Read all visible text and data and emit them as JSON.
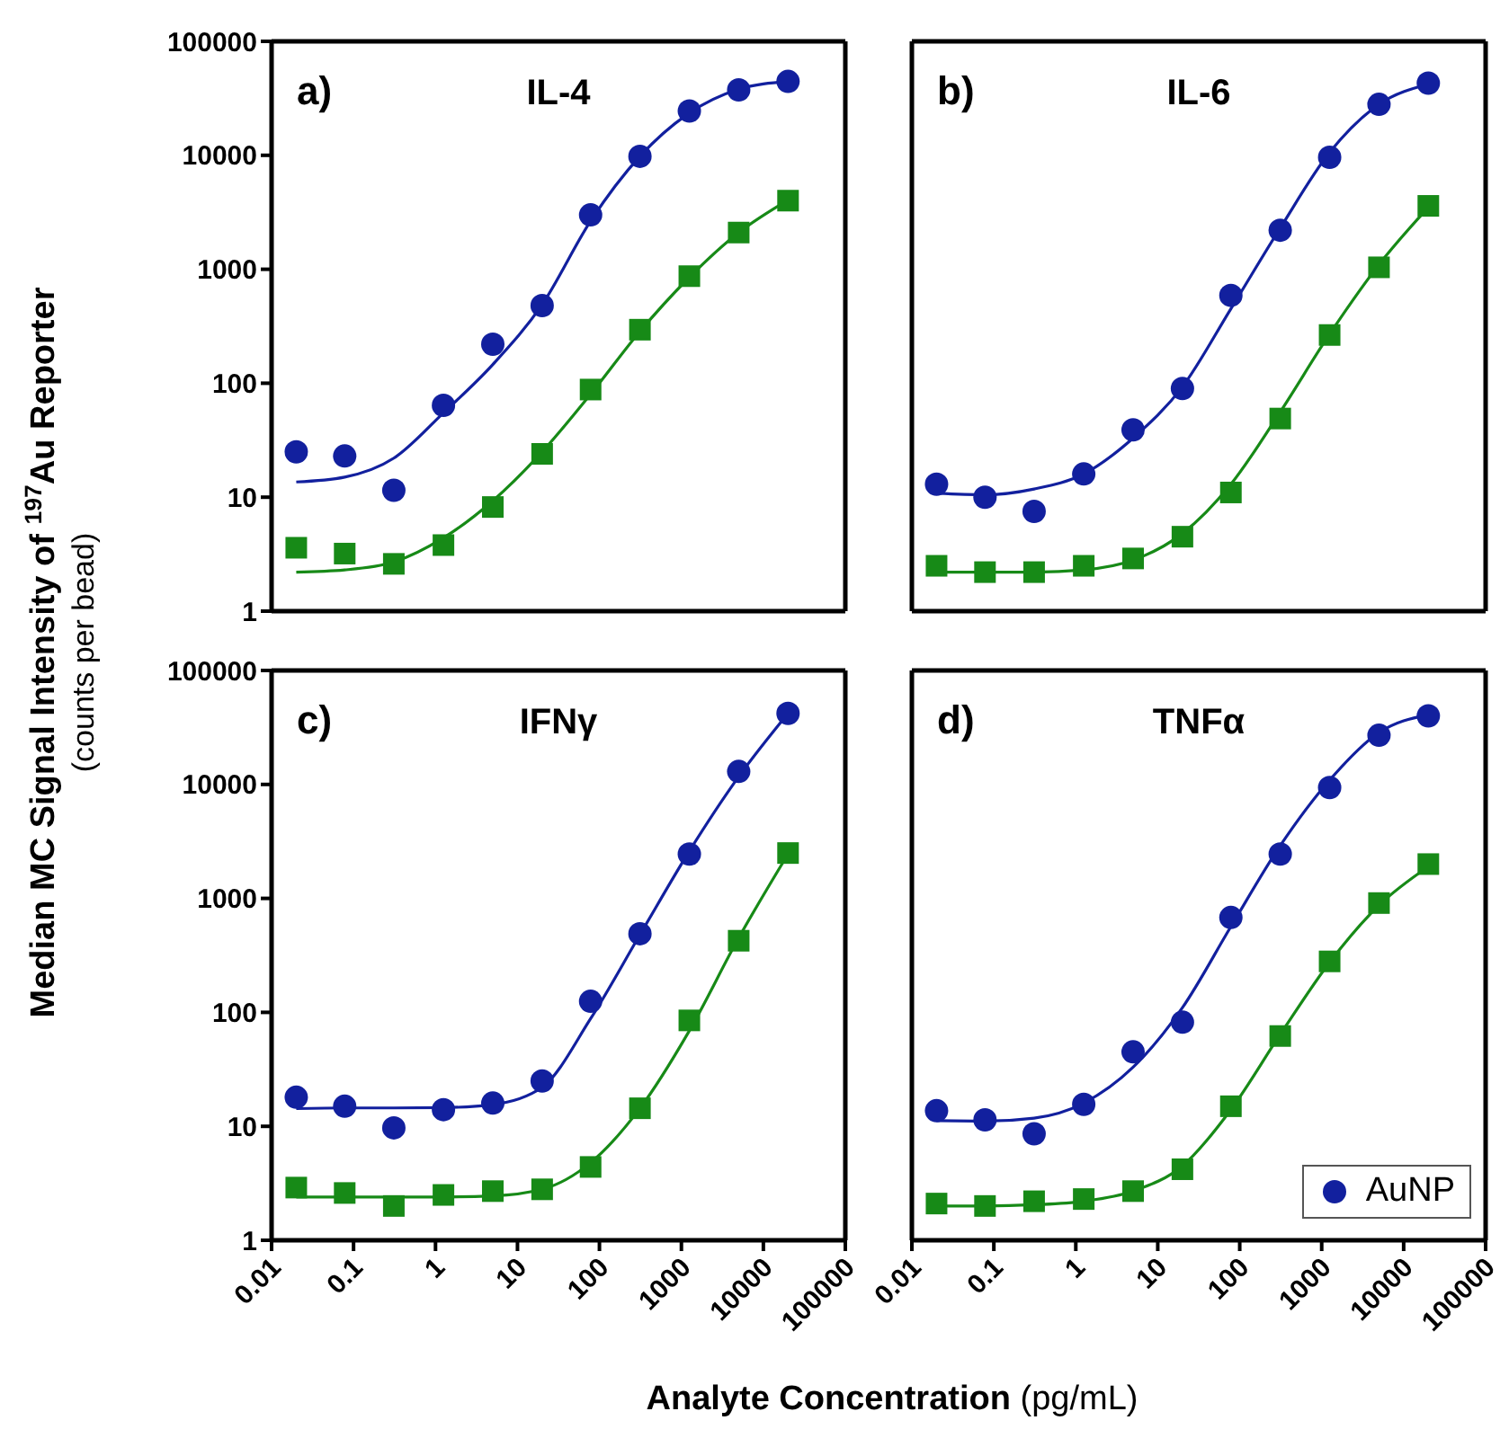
{
  "chart_data": [
    {
      "type": "scatter",
      "title": "IL-4",
      "annotations": [
        "a)"
      ],
      "ylabel": "Median MC Signal Intensity of $^{197}$Au Reporter (counts per bead)",
      "xlabel": "Analyte Concentration (pg/mL)",
      "x": [
        0.02,
        0.078,
        0.31,
        1.25,
        5,
        20,
        78,
        312,
        1250,
        5000,
        20000
      ],
      "xlim": [
        0.01,
        100000
      ],
      "xticks": [
        0.01,
        0.1,
        1,
        10,
        100,
        1000,
        10000,
        100000
      ],
      "ylim": [
        1,
        100000
      ],
      "yticks": [
        1,
        10,
        100,
        1000,
        10000,
        100000
      ],
      "log": "xy",
      "tick_labels": "y",
      "series": [
        {
          "color": "#12209e",
          "marker": "circle",
          "values": [
            25,
            23,
            11.5,
            64,
            220,
            480,
            3000,
            9800,
            24500,
            37500,
            44500
          ]
        },
        {
          "color": "#178a17",
          "marker": "square",
          "values": [
            3.6,
            3.2,
            2.6,
            3.8,
            8.2,
            24,
            88,
            295,
            870,
            2100,
            4000
          ]
        },
        {
          "type": "line",
          "color": "#12209e",
          "marker": "none",
          "values": [
            13.6,
            15,
            22,
            55,
            146,
            490,
            2650,
            9800,
            23500,
            38000,
            44500
          ]
        },
        {
          "type": "line",
          "color": "#178a17",
          "marker": "none",
          "values": [
            2.2,
            2.3,
            2.7,
            4.4,
            9.3,
            25,
            80,
            285,
            850,
            2100,
            4050
          ]
        }
      ]
    },
    {
      "type": "scatter",
      "title": "IL-6",
      "annotations": [
        "b)"
      ],
      "x": [
        0.02,
        0.078,
        0.31,
        1.25,
        5,
        20,
        78,
        312,
        1250,
        5000,
        20000
      ],
      "xlim": [
        0.01,
        100000
      ],
      "xticks": [
        0.01,
        0.1,
        1,
        10,
        100,
        1000,
        10000,
        100000
      ],
      "ylim": [
        1,
        100000
      ],
      "yticks": [
        1,
        10,
        100,
        1000,
        10000,
        100000
      ],
      "log": "xy",
      "tick_labels": false,
      "series": [
        {
          "color": "#12209e",
          "marker": "circle",
          "values": [
            13,
            10,
            7.5,
            16,
            39,
            90,
            590,
            2200,
            9600,
            28000,
            43000
          ]
        },
        {
          "color": "#178a17",
          "marker": "square",
          "values": [
            2.5,
            2.2,
            2.2,
            2.5,
            2.9,
            4.5,
            11,
            49,
            265,
            1040,
            3600
          ]
        },
        {
          "type": "line",
          "color": "#12209e",
          "marker": "none",
          "values": [
            10.8,
            10.5,
            11.8,
            16,
            33,
            93,
            450,
            2300,
            10600,
            28000,
            42000
          ]
        },
        {
          "type": "line",
          "color": "#178a17",
          "marker": "none",
          "values": [
            2.2,
            2.2,
            2.2,
            2.3,
            2.8,
            4.8,
            13,
            56,
            270,
            1100,
            3500
          ]
        }
      ]
    },
    {
      "type": "scatter",
      "title": "IFNγ",
      "annotations": [
        "c)"
      ],
      "x": [
        0.02,
        0.078,
        0.31,
        1.25,
        5,
        20,
        78,
        312,
        1250,
        5000,
        20000
      ],
      "xlim": [
        0.01,
        100000
      ],
      "xticks": [
        0.01,
        0.1,
        1,
        10,
        100,
        1000,
        10000,
        100000
      ],
      "ylim": [
        1,
        100000
      ],
      "yticks": [
        1,
        10,
        100,
        1000,
        10000,
        100000
      ],
      "log": "xy",
      "series": [
        {
          "color": "#12209e",
          "marker": "circle",
          "values": [
            18,
            15,
            9.7,
            14,
            16,
            25,
            125,
            490,
            2450,
            13000,
            42000
          ]
        },
        {
          "color": "#178a17",
          "marker": "square",
          "values": [
            2.9,
            2.6,
            2.0,
            2.5,
            2.7,
            2.8,
            4.4,
            14.4,
            85,
            425,
            2500
          ]
        },
        {
          "type": "line",
          "color": "#12209e",
          "marker": "none",
          "values": [
            14.3,
            14.5,
            14.5,
            14.6,
            15.5,
            22,
            88,
            480,
            2600,
            11700,
            42000
          ]
        },
        {
          "type": "line",
          "color": "#178a17",
          "marker": "none",
          "values": [
            2.4,
            2.4,
            2.4,
            2.4,
            2.45,
            2.8,
            4.8,
            14.4,
            69,
            450,
            2450
          ]
        }
      ]
    },
    {
      "type": "scatter",
      "title": "TNFα",
      "annotations": [
        "d)"
      ],
      "x": [
        0.02,
        0.078,
        0.31,
        1.25,
        5,
        20,
        78,
        312,
        1250,
        5000,
        20000
      ],
      "xlim": [
        0.01,
        100000
      ],
      "xticks": [
        0.01,
        0.1,
        1,
        10,
        100,
        1000,
        10000,
        100000
      ],
      "ylim": [
        1,
        100000
      ],
      "yticks": [
        1,
        10,
        100,
        1000,
        10000,
        100000
      ],
      "log": "xy",
      "tick_labels": "x",
      "legend": "bottom right",
      "series": [
        {
          "name": "AuNP",
          "color": "#12209e",
          "marker": "circle",
          "values": [
            13.7,
            11.4,
            8.6,
            15.6,
            45,
            82,
            680,
            2450,
            9400,
            27000,
            40000
          ]
        },
        {
          "color": "#178a17",
          "marker": "square",
          "values": [
            2.1,
            2.0,
            2.2,
            2.3,
            2.7,
            4.2,
            15,
            62,
            280,
            910,
            2000
          ]
        },
        {
          "type": "line",
          "color": "#12209e",
          "marker": "none",
          "values": [
            11.2,
            11.1,
            11.8,
            16,
            33,
            110,
            565,
            2900,
            10900,
            28500,
            41000
          ]
        },
        {
          "type": "line",
          "color": "#178a17",
          "marker": "none",
          "values": [
            2.0,
            2.0,
            2.05,
            2.2,
            2.7,
            4.5,
            14,
            64,
            275,
            870,
            1900
          ]
        }
      ]
    }
  ]
}
